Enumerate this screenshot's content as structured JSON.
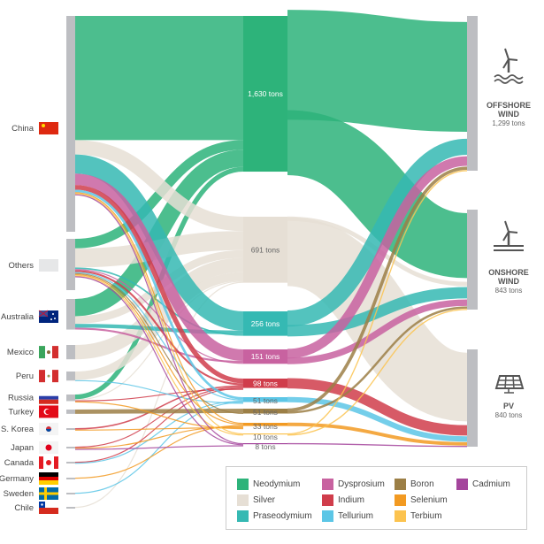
{
  "sources": [
    {
      "id": "china",
      "label": "China",
      "flag": "china"
    },
    {
      "id": "others",
      "label": "Others",
      "flag": "others"
    },
    {
      "id": "australia",
      "label": "Australia",
      "flag": "australia"
    },
    {
      "id": "mexico",
      "label": "Mexico",
      "flag": "mexico"
    },
    {
      "id": "peru",
      "label": "Peru",
      "flag": "peru"
    },
    {
      "id": "russia",
      "label": "Russia",
      "flag": "russia"
    },
    {
      "id": "turkey",
      "label": "Turkey",
      "flag": "turkey"
    },
    {
      "id": "skorea",
      "label": "S. Korea",
      "flag": "skorea"
    },
    {
      "id": "japan",
      "label": "Japan",
      "flag": "japan"
    },
    {
      "id": "canada",
      "label": "Canada",
      "flag": "canada"
    },
    {
      "id": "germany",
      "label": "Germany",
      "flag": "germany"
    },
    {
      "id": "sweden",
      "label": "Sweden",
      "flag": "sweden"
    },
    {
      "id": "chile",
      "label": "Chile",
      "flag": "chile"
    }
  ],
  "materials": [
    {
      "id": "nd",
      "label": "Neodymium",
      "total": "1,630 tons",
      "value": 1630,
      "color": "#2db37a"
    },
    {
      "id": "ag",
      "label": "Silver",
      "total": "691 tons",
      "value": 691,
      "color": "#e6dfd5"
    },
    {
      "id": "pr",
      "label": "Praseodymium",
      "total": "256 tons",
      "value": 256,
      "color": "#35b9b3"
    },
    {
      "id": "dy",
      "label": "Dysprosium",
      "total": "151 tons",
      "value": 151,
      "color": "#c862a0"
    },
    {
      "id": "in",
      "label": "Indium",
      "total": "98 tons",
      "value": 98,
      "color": "#d03d4b"
    },
    {
      "id": "te",
      "label": "Tellurium",
      "total": "51 tons",
      "value": 51,
      "color": "#5cc6e6"
    },
    {
      "id": "b",
      "label": "Boron",
      "total": "51 tons",
      "value": 51,
      "color": "#9c7f46"
    },
    {
      "id": "se",
      "label": "Selenium",
      "total": "33 tons",
      "value": 33,
      "color": "#f29a22"
    },
    {
      "id": "tb",
      "label": "Terbium",
      "total": "10 tons",
      "value": 10,
      "color": "#fcc34f"
    },
    {
      "id": "cd",
      "label": "Cadmium",
      "total": "8 tons",
      "value": 8,
      "color": "#a4459c"
    }
  ],
  "technologies": [
    {
      "id": "off",
      "label1": "OFFSHORE",
      "label2": "WIND",
      "total": "1,299 tons",
      "icon": "offshore-wind-turbine"
    },
    {
      "id": "on",
      "label1": "ONSHORE",
      "label2": "WIND",
      "total": "843 tons",
      "icon": "onshore-wind-turbine"
    },
    {
      "id": "pv",
      "label1": "PV",
      "label2": "",
      "total": "840 tons",
      "icon": "solar-panel"
    }
  ],
  "source_flows_estimated": [
    [
      "china",
      "nd",
      1300
    ],
    [
      "others",
      "nd",
      100
    ],
    [
      "australia",
      "nd",
      180
    ],
    [
      "russia",
      "nd",
      50
    ],
    [
      "china",
      "ag",
      150
    ],
    [
      "others",
      "ag",
      200
    ],
    [
      "australia",
      "ag",
      80
    ],
    [
      "mexico",
      "ag",
      150
    ],
    [
      "peru",
      "ag",
      90
    ],
    [
      "russia",
      "ag",
      10
    ],
    [
      "chile",
      "ag",
      11
    ],
    [
      "china",
      "pr",
      200
    ],
    [
      "australia",
      "pr",
      40
    ],
    [
      "others",
      "pr",
      16
    ],
    [
      "china",
      "dy",
      120
    ],
    [
      "australia",
      "dy",
      20
    ],
    [
      "others",
      "dy",
      11
    ],
    [
      "china",
      "in",
      50
    ],
    [
      "others",
      "in",
      20
    ],
    [
      "skorea",
      "in",
      15
    ],
    [
      "japan",
      "in",
      5
    ],
    [
      "canada",
      "in",
      3
    ],
    [
      "russia",
      "in",
      5
    ],
    [
      "china",
      "te",
      25
    ],
    [
      "others",
      "te",
      10
    ],
    [
      "canada",
      "te",
      6
    ],
    [
      "sweden",
      "te",
      5
    ],
    [
      "peru",
      "te",
      5
    ],
    [
      "turkey",
      "b",
      45
    ],
    [
      "others",
      "b",
      6
    ],
    [
      "china",
      "se",
      10
    ],
    [
      "others",
      "se",
      5
    ],
    [
      "germany",
      "se",
      5
    ],
    [
      "japan",
      "se",
      5
    ],
    [
      "skorea",
      "se",
      4
    ],
    [
      "russia",
      "se",
      4
    ],
    [
      "china",
      "tb",
      8
    ],
    [
      "others",
      "tb",
      2
    ],
    [
      "china",
      "cd",
      4
    ],
    [
      "others",
      "cd",
      2
    ],
    [
      "japan",
      "cd",
      2
    ]
  ],
  "tech_flows_estimated": [
    [
      "nd",
      "off",
      1023
    ],
    [
      "nd",
      "on",
      607
    ],
    [
      "ag",
      "on",
      41
    ],
    [
      "ag",
      "pv",
      650
    ],
    [
      "pr",
      "off",
      150
    ],
    [
      "pr",
      "on",
      106
    ],
    [
      "dy",
      "off",
      90
    ],
    [
      "dy",
      "on",
      61
    ],
    [
      "in",
      "pv",
      98
    ],
    [
      "te",
      "pv",
      51
    ],
    [
      "b",
      "off",
      30
    ],
    [
      "b",
      "on",
      21
    ],
    [
      "se",
      "pv",
      33
    ],
    [
      "tb",
      "off",
      6
    ],
    [
      "tb",
      "on",
      4
    ],
    [
      "cd",
      "pv",
      8
    ]
  ]
}
